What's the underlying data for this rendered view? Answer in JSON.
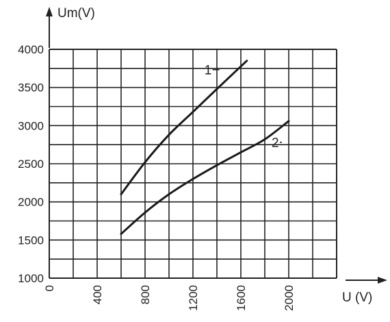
{
  "chart_data": {
    "type": "line",
    "title": "",
    "ylabel": "Um(V)",
    "xlabel": "U (V)",
    "xlim": [
      0,
      2400
    ],
    "ylim": [
      1000,
      4000
    ],
    "grid": true,
    "x_ticks": [
      "0",
      "400",
      "800",
      "1200",
      "1600",
      "2000"
    ],
    "y_ticks": [
      "1000",
      "1500",
      "2000",
      "2500",
      "3000",
      "3500",
      "4000"
    ],
    "series": [
      {
        "name": "1",
        "x": [
          600,
          800,
          1000,
          1200,
          1400,
          1650
        ],
        "y": [
          2100,
          2520,
          2880,
          3180,
          3480,
          3850
        ]
      },
      {
        "name": "2",
        "x": [
          600,
          800,
          1000,
          1200,
          1400,
          1600,
          1800,
          2000
        ],
        "y": [
          1580,
          1860,
          2100,
          2300,
          2480,
          2650,
          2820,
          3060
        ]
      }
    ],
    "label_color": "#222222",
    "line_color": "#1a1a1a"
  }
}
